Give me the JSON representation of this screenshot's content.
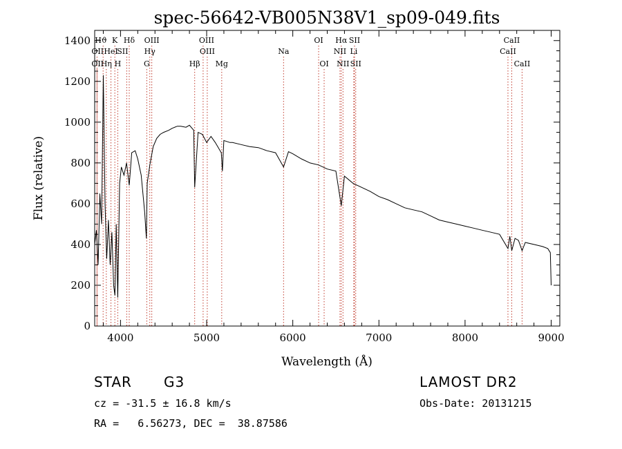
{
  "chart_data": {
    "type": "line",
    "title": "spec-56642-VB005N38V1_sp09-049.fits",
    "xlabel": "Wavelength (Å)",
    "ylabel": "Flux (relative)",
    "xlim": [
      3700,
      9100
    ],
    "ylim": [
      0,
      1450
    ],
    "x_ticks": [
      4000,
      5000,
      6000,
      7000,
      8000,
      9000
    ],
    "y_ticks": [
      0,
      200,
      400,
      600,
      800,
      1000,
      1200,
      1400
    ],
    "grid": false,
    "series": [
      {
        "x": [
          3700,
          3720,
          3740,
          3760,
          3780,
          3800,
          3820,
          3840,
          3860,
          3880,
          3900,
          3920,
          3935,
          3950,
          3968,
          3990,
          4010,
          4040,
          4070,
          4101,
          4130,
          4170,
          4200,
          4240,
          4280,
          4300,
          4310,
          4340,
          4380,
          4420,
          4460,
          4500,
          4560,
          4600,
          4660,
          4700,
          4760,
          4800,
          4850,
          4861,
          4900,
          4950,
          5000,
          5050,
          5100,
          5170,
          5183,
          5200,
          5270,
          5300,
          5400,
          5500,
          5600,
          5700,
          5800,
          5893,
          5950,
          6000,
          6100,
          6200,
          6300,
          6400,
          6500,
          6563,
          6600,
          6700,
          6800,
          6900,
          7000,
          7100,
          7200,
          7300,
          7400,
          7500,
          7600,
          7700,
          7800,
          7900,
          8000,
          8100,
          8200,
          8300,
          8400,
          8498,
          8520,
          8542,
          8580,
          8620,
          8662,
          8700,
          8800,
          8900,
          8960,
          8990,
          9000
        ],
        "y": [
          400,
          470,
          300,
          650,
          500,
          1230,
          600,
          330,
          520,
          300,
          460,
          200,
          150,
          500,
          140,
          700,
          780,
          740,
          800,
          690,
          850,
          860,
          820,
          740,
          560,
          430,
          700,
          790,
          880,
          920,
          940,
          950,
          960,
          970,
          980,
          980,
          975,
          985,
          960,
          680,
          950,
          940,
          900,
          930,
          900,
          850,
          760,
          910,
          900,
          900,
          890,
          880,
          875,
          860,
          850,
          780,
          855,
          845,
          820,
          800,
          790,
          770,
          760,
          590,
          735,
          700,
          680,
          660,
          635,
          620,
          600,
          580,
          570,
          560,
          540,
          520,
          510,
          500,
          490,
          480,
          470,
          460,
          450,
          380,
          440,
          370,
          430,
          420,
          370,
          410,
          400,
          390,
          380,
          360,
          200
        ]
      }
    ],
    "lines": [
      {
        "name": "Hϑ",
        "x": 3798,
        "row": 0,
        "anchor": "start",
        "dx": -12
      },
      {
        "name": "K",
        "x": 3934,
        "row": 0,
        "anchor": "middle",
        "dx": 0
      },
      {
        "name": "Hδ",
        "x": 4101,
        "row": 0,
        "anchor": "middle",
        "dx": 0
      },
      {
        "name": "OIII",
        "x": 4363,
        "row": 0,
        "anchor": "middle",
        "dx": 0
      },
      {
        "name": "OIII",
        "x": 4959,
        "row": 0,
        "anchor": "start",
        "dx": -6
      },
      {
        "name": "OI",
        "x": 6300,
        "row": 0,
        "anchor": "middle",
        "dx": 0
      },
      {
        "name": "Hα",
        "x": 6563,
        "row": 0,
        "anchor": "middle",
        "dx": 0
      },
      {
        "name": "SII",
        "x": 6717,
        "row": 0,
        "anchor": "middle",
        "dx": 0
      },
      {
        "name": "CaII",
        "x": 8542,
        "row": 0,
        "anchor": "middle",
        "dx": 0
      },
      {
        "name": "OII",
        "x": 3727,
        "row": 1,
        "anchor": "start",
        "dx": -8
      },
      {
        "name": "HeI",
        "x": 3889,
        "row": 1,
        "anchor": "middle",
        "dx": 0
      },
      {
        "name": "SII",
        "x": 4072,
        "row": 1,
        "anchor": "middle",
        "dx": -6
      },
      {
        "name": "Hγ",
        "x": 4340,
        "row": 1,
        "anchor": "middle",
        "dx": 0
      },
      {
        "name": "OIII",
        "x": 5007,
        "row": 1,
        "anchor": "middle",
        "dx": 0
      },
      {
        "name": "Na",
        "x": 5893,
        "row": 1,
        "anchor": "middle",
        "dx": 0
      },
      {
        "name": "NII",
        "x": 6548,
        "row": 1,
        "anchor": "middle",
        "dx": 0
      },
      {
        "name": "Li",
        "x": 6708,
        "row": 1,
        "anchor": "middle",
        "dx": 0
      },
      {
        "name": "CaII",
        "x": 8498,
        "row": 1,
        "anchor": "middle",
        "dx": 0
      },
      {
        "name": "OII",
        "x": 3727,
        "row": 2,
        "anchor": "start",
        "dx": -8
      },
      {
        "name": "Hη",
        "x": 3835,
        "row": 2,
        "anchor": "middle",
        "dx": 0
      },
      {
        "name": "H",
        "x": 3968,
        "row": 2,
        "anchor": "middle",
        "dx": 0
      },
      {
        "name": "G",
        "x": 4305,
        "row": 2,
        "anchor": "middle",
        "dx": 0
      },
      {
        "name": "Hβ",
        "x": 4861,
        "row": 2,
        "anchor": "middle",
        "dx": 0
      },
      {
        "name": "Mg",
        "x": 5175,
        "row": 2,
        "anchor": "middle",
        "dx": 0
      },
      {
        "name": "OI",
        "x": 6364,
        "row": 2,
        "anchor": "middle",
        "dx": 0
      },
      {
        "name": "NII",
        "x": 6583,
        "row": 2,
        "anchor": "middle",
        "dx": 0
      },
      {
        "name": "SII",
        "x": 6731,
        "row": 2,
        "anchor": "middle",
        "dx": 0
      },
      {
        "name": "CaII",
        "x": 8662,
        "row": 2,
        "anchor": "middle",
        "dx": 0
      }
    ],
    "line_color": "#000000",
    "marker_color": "#c0392b"
  },
  "info": {
    "object_class": "STAR",
    "subclass": "G3",
    "survey": "LAMOST DR2",
    "cz": "cz = -31.5 ± 16.8 km/s",
    "obs_date": "Obs-Date: 20131215",
    "coords": "RA =   6.56273, DEC =  38.87586"
  }
}
